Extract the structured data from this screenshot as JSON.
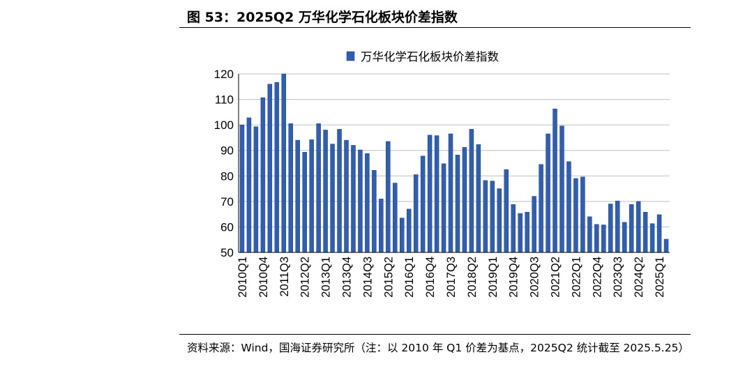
{
  "figure": {
    "title": "图 53：2025Q2 万华化学石化板块价差指数",
    "source": "资料来源：Wind，国海证券研究所（注：以 2010 年 Q1 价差为基点，2025Q2 统计截至 2025.5.25）"
  },
  "chart_data": {
    "type": "bar",
    "title": "",
    "xlabel": "",
    "ylabel": "",
    "ylim": [
      50,
      120
    ],
    "yticks": [
      50,
      60,
      70,
      80,
      90,
      100,
      110,
      120
    ],
    "grid": true,
    "legend_position": "top-center",
    "bar_color": "#2e5fb4",
    "series": [
      {
        "name": "万华化学石化板块价差指数"
      }
    ],
    "categories": [
      "2010Q1",
      "2010Q2",
      "2010Q3",
      "2010Q4",
      "2011Q1",
      "2011Q2",
      "2011Q3",
      "2011Q4",
      "2012Q1",
      "2012Q2",
      "2012Q3",
      "2012Q4",
      "2013Q1",
      "2013Q2",
      "2013Q3",
      "2013Q4",
      "2014Q1",
      "2014Q2",
      "2014Q3",
      "2014Q4",
      "2015Q1",
      "2015Q2",
      "2015Q3",
      "2015Q4",
      "2016Q1",
      "2016Q2",
      "2016Q3",
      "2016Q4",
      "2017Q1",
      "2017Q2",
      "2017Q3",
      "2017Q4",
      "2018Q1",
      "2018Q2",
      "2018Q3",
      "2018Q4",
      "2019Q1",
      "2019Q2",
      "2019Q3",
      "2019Q4",
      "2020Q1",
      "2020Q2",
      "2020Q3",
      "2020Q4",
      "2021Q1",
      "2021Q2",
      "2021Q3",
      "2021Q4",
      "2022Q1",
      "2022Q2",
      "2022Q3",
      "2022Q4",
      "2023Q1",
      "2023Q2",
      "2023Q3",
      "2023Q4",
      "2024Q1",
      "2024Q2",
      "2024Q3",
      "2024Q4",
      "2025Q1",
      "2025Q2"
    ],
    "values": [
      100.0,
      102.8,
      99.3,
      110.7,
      116.0,
      116.7,
      120.0,
      100.5,
      94.0,
      89.3,
      94.2,
      100.5,
      98.0,
      92.5,
      98.3,
      94.0,
      92.0,
      90.2,
      88.8,
      82.2,
      71.0,
      93.5,
      77.2,
      63.5,
      67.0,
      80.5,
      87.8,
      96.0,
      95.8,
      84.8,
      96.5,
      88.2,
      91.2,
      98.3,
      92.3,
      78.2,
      78.0,
      75.0,
      82.5,
      68.8,
      65.3,
      65.8,
      72.0,
      84.5,
      96.5,
      106.3,
      99.6,
      85.6,
      79.0,
      79.6,
      64.0,
      61.0,
      60.8,
      69.0,
      70.2,
      61.8,
      68.8,
      70.0,
      65.8,
      61.3,
      64.8,
      55.2
    ],
    "tick_labels": [
      "2010Q1",
      "2010Q4",
      "2011Q3",
      "2012Q2",
      "2013Q1",
      "2013Q4",
      "2014Q3",
      "2015Q2",
      "2016Q1",
      "2016Q4",
      "2017Q3",
      "2018Q2",
      "2019Q1",
      "2019Q4",
      "2020Q3",
      "2021Q2",
      "2022Q1",
      "2022Q4",
      "2023Q3",
      "2024Q2",
      "2025Q1"
    ]
  }
}
